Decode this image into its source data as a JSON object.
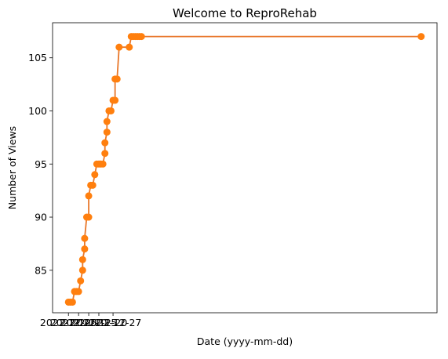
{
  "chart_data": {
    "type": "line",
    "title": "Welcome to ReproRehab",
    "xlabel": "Date (yyyy-mm-dd)",
    "ylabel": "Number of Views",
    "grid": false,
    "legend": "none",
    "series_color": "#ff7f0e",
    "line_color": "#e8772a",
    "ylim": [
      81,
      108.3
    ],
    "xlim": [
      "2022-12-05",
      "2023-05-28"
    ],
    "yticks": [
      85,
      90,
      95,
      100,
      105
    ],
    "xticks": [
      "2022-12-05",
      "2022-12-10",
      "2022-12-15",
      "2022-12-20",
      "2022-12-27"
    ],
    "points": [
      {
        "x": "2022-12-05",
        "y": 82
      },
      {
        "x": "2022-12-06",
        "y": 82
      },
      {
        "x": "2022-12-07",
        "y": 82
      },
      {
        "x": "2022-12-08",
        "y": 83
      },
      {
        "x": "2022-12-09",
        "y": 83
      },
      {
        "x": "2022-12-10",
        "y": 83
      },
      {
        "x": "2022-12-11",
        "y": 84
      },
      {
        "x": "2022-12-12",
        "y": 85
      },
      {
        "x": "2022-12-12",
        "y": 86
      },
      {
        "x": "2022-12-13",
        "y": 87
      },
      {
        "x": "2022-12-13",
        "y": 88
      },
      {
        "x": "2022-12-14",
        "y": 90
      },
      {
        "x": "2022-12-15",
        "y": 90
      },
      {
        "x": "2022-12-15",
        "y": 92
      },
      {
        "x": "2022-12-16",
        "y": 93
      },
      {
        "x": "2022-12-17",
        "y": 93
      },
      {
        "x": "2022-12-18",
        "y": 94
      },
      {
        "x": "2022-12-19",
        "y": 95
      },
      {
        "x": "2022-12-20",
        "y": 95
      },
      {
        "x": "2022-12-21",
        "y": 95
      },
      {
        "x": "2022-12-22",
        "y": 95
      },
      {
        "x": "2022-12-23",
        "y": 96
      },
      {
        "x": "2022-12-23",
        "y": 97
      },
      {
        "x": "2022-12-24",
        "y": 98
      },
      {
        "x": "2022-12-24",
        "y": 99
      },
      {
        "x": "2022-12-25",
        "y": 100
      },
      {
        "x": "2022-12-26",
        "y": 100
      },
      {
        "x": "2022-12-27",
        "y": 101
      },
      {
        "x": "2022-12-28",
        "y": 101
      },
      {
        "x": "2022-12-28",
        "y": 103
      },
      {
        "x": "2022-12-29",
        "y": 103
      },
      {
        "x": "2022-12-30",
        "y": 106
      },
      {
        "x": "2023-01-04",
        "y": 106
      },
      {
        "x": "2023-01-05",
        "y": 107
      },
      {
        "x": "2023-01-06",
        "y": 107
      },
      {
        "x": "2023-01-07",
        "y": 107
      },
      {
        "x": "2023-01-08",
        "y": 107
      },
      {
        "x": "2023-01-09",
        "y": 107
      },
      {
        "x": "2023-01-10",
        "y": 107
      },
      {
        "x": "2023-05-28",
        "y": 107
      }
    ]
  }
}
